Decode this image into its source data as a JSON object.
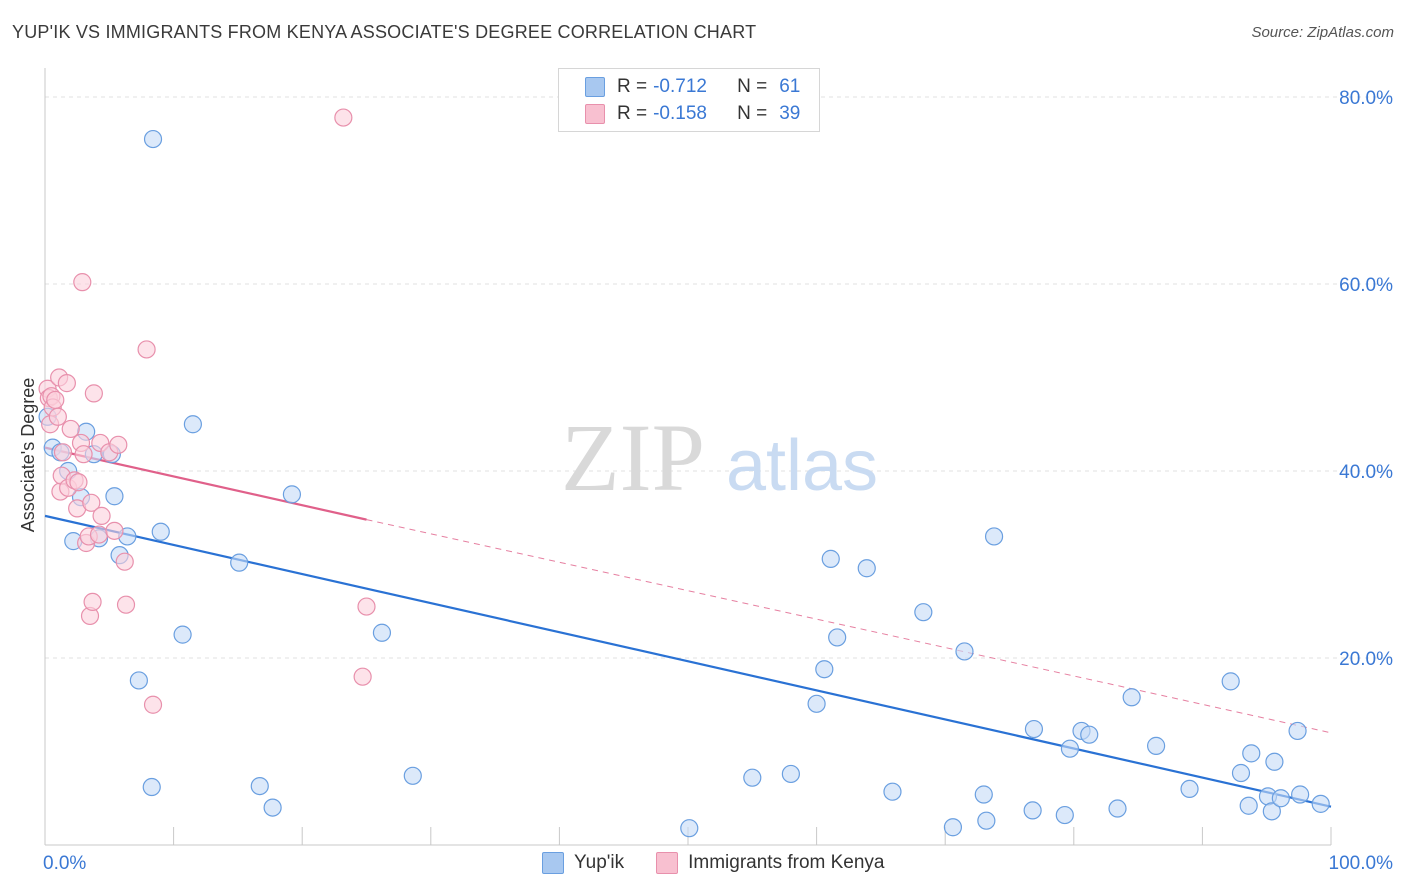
{
  "title": "YUP'IK VS IMMIGRANTS FROM KENYA ASSOCIATE'S DEGREE CORRELATION CHART",
  "source": "Source: ZipAtlas.com",
  "watermark": {
    "zip": "ZIP",
    "atlas": "atlas"
  },
  "legend": {
    "rows": [
      {
        "r_label": "R =",
        "r_value": "-0.712",
        "n_label": "N =",
        "n_value": "61",
        "color": "#a8c8f0",
        "border": "#6a9fe0"
      },
      {
        "r_label": "R =",
        "r_value": "-0.158",
        "n_label": "N =",
        "n_value": "39",
        "color": "#f8c0d0",
        "border": "#e890ac"
      }
    ]
  },
  "bottom_legend": [
    "Yup'ik",
    "Immigrants from Kenya"
  ],
  "chart_data": {
    "type": "scatter",
    "title": "YUP'IK VS IMMIGRANTS FROM KENYA ASSOCIATE'S DEGREE CORRELATION CHART",
    "xlabel": "",
    "ylabel": "Associate's Degree",
    "xlim": [
      0,
      100
    ],
    "ylim": [
      0,
      80
    ],
    "x_tick_labels": [
      "0.0%",
      "100.0%"
    ],
    "y_ticks": [
      20,
      40,
      60,
      80
    ],
    "y_tick_labels": [
      "20.0%",
      "40.0%",
      "60.0%",
      "80.0%"
    ],
    "grid": true,
    "series": [
      {
        "name": "Yup'ik",
        "color": "#6a9fe0",
        "fill": "#c5dbf7",
        "line_color": "#2a72d4",
        "trend": {
          "x0": 0,
          "y0": 35.2,
          "x1": 100,
          "y1": 4.1
        },
        "points": [
          [
            0.2,
            45.8
          ],
          [
            0.6,
            42.5
          ],
          [
            1.2,
            42.0
          ],
          [
            1.8,
            40.0
          ],
          [
            2.2,
            32.5
          ],
          [
            2.8,
            37.2
          ],
          [
            3.2,
            44.2
          ],
          [
            3.8,
            41.8
          ],
          [
            4.2,
            32.8
          ],
          [
            5.2,
            41.8
          ],
          [
            5.4,
            37.3
          ],
          [
            5.8,
            31.0
          ],
          [
            6.4,
            33.0
          ],
          [
            7.3,
            17.6
          ],
          [
            8.3,
            6.2
          ],
          [
            8.4,
            75.5
          ],
          [
            9.0,
            33.5
          ],
          [
            10.7,
            22.5
          ],
          [
            11.5,
            45.0
          ],
          [
            15.1,
            30.2
          ],
          [
            16.7,
            6.3
          ],
          [
            17.7,
            4.0
          ],
          [
            19.2,
            37.5
          ],
          [
            26.2,
            22.7
          ],
          [
            28.6,
            7.4
          ],
          [
            50.1,
            1.8
          ],
          [
            55.0,
            7.2
          ],
          [
            58.0,
            7.6
          ],
          [
            60.0,
            15.1
          ],
          [
            60.6,
            18.8
          ],
          [
            61.1,
            30.6
          ],
          [
            61.6,
            22.2
          ],
          [
            63.9,
            29.6
          ],
          [
            65.9,
            5.7
          ],
          [
            68.3,
            24.9
          ],
          [
            70.6,
            1.9
          ],
          [
            71.5,
            20.7
          ],
          [
            73.0,
            5.4
          ],
          [
            73.2,
            2.6
          ],
          [
            73.8,
            33.0
          ],
          [
            76.8,
            3.7
          ],
          [
            76.9,
            12.4
          ],
          [
            79.3,
            3.2
          ],
          [
            79.7,
            10.3
          ],
          [
            80.6,
            12.2
          ],
          [
            81.2,
            11.8
          ],
          [
            83.4,
            3.9
          ],
          [
            84.5,
            15.8
          ],
          [
            86.4,
            10.6
          ],
          [
            89.0,
            6.0
          ],
          [
            92.2,
            17.5
          ],
          [
            93.0,
            7.7
          ],
          [
            93.6,
            4.2
          ],
          [
            93.8,
            9.8
          ],
          [
            95.1,
            5.2
          ],
          [
            95.4,
            3.6
          ],
          [
            95.6,
            8.9
          ],
          [
            96.1,
            5.0
          ],
          [
            97.4,
            12.2
          ],
          [
            97.6,
            5.4
          ],
          [
            99.2,
            4.4
          ]
        ]
      },
      {
        "name": "Immigrants from Kenya",
        "color": "#e890ac",
        "fill": "#fbd0dc",
        "line_color": "#e0608a",
        "trend": {
          "x0": 0,
          "y0": 42.5,
          "x1": 25,
          "y1": 34.8
        },
        "trend_ext": {
          "x0": 25,
          "y0": 34.8,
          "x1": 100,
          "y1": 12.0
        },
        "points": [
          [
            0.2,
            48.8
          ],
          [
            0.3,
            47.8
          ],
          [
            0.4,
            45.0
          ],
          [
            0.5,
            48.0
          ],
          [
            0.6,
            46.8
          ],
          [
            0.8,
            47.6
          ],
          [
            1.0,
            45.8
          ],
          [
            1.1,
            50.0
          ],
          [
            1.2,
            37.8
          ],
          [
            1.3,
            39.5
          ],
          [
            1.4,
            42.0
          ],
          [
            1.7,
            49.4
          ],
          [
            1.8,
            38.2
          ],
          [
            2.0,
            44.5
          ],
          [
            2.3,
            39.0
          ],
          [
            2.5,
            36.0
          ],
          [
            2.6,
            38.8
          ],
          [
            2.8,
            43.0
          ],
          [
            2.9,
            60.2
          ],
          [
            3.0,
            41.8
          ],
          [
            3.2,
            32.3
          ],
          [
            3.4,
            33.0
          ],
          [
            3.5,
            24.5
          ],
          [
            3.6,
            36.6
          ],
          [
            3.7,
            26.0
          ],
          [
            3.8,
            48.3
          ],
          [
            4.2,
            33.2
          ],
          [
            4.3,
            43.0
          ],
          [
            4.4,
            35.2
          ],
          [
            5.0,
            42.0
          ],
          [
            5.4,
            33.6
          ],
          [
            5.7,
            42.8
          ],
          [
            6.2,
            30.3
          ],
          [
            6.3,
            25.7
          ],
          [
            7.9,
            53.0
          ],
          [
            8.4,
            15.0
          ],
          [
            23.2,
            77.8
          ],
          [
            24.7,
            18.0
          ],
          [
            25.0,
            25.5
          ]
        ]
      }
    ]
  }
}
